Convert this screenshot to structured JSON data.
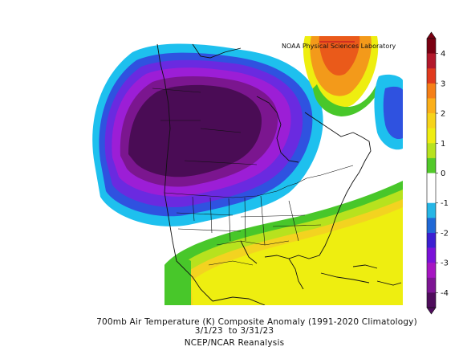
{
  "map": {
    "credit": "NOAA Physical Sciences Laboratory",
    "caption_line1": "700mb Air Temperature (K) Composite Anomaly (1991-2020 Climatology)",
    "caption_line2": "3/1/23  to 3/31/23",
    "caption_line3": "NCEP/NCAR Reanalysis"
  },
  "colorbar": {
    "ticks": [
      "4",
      "3",
      "2",
      "1",
      "0",
      "-1",
      "-2",
      "-3",
      "-4"
    ],
    "colors": [
      "#7a0012",
      "#b2182b",
      "#e03a1e",
      "#f57f17",
      "#fbaf1a",
      "#f6d31a",
      "#efed12",
      "#b7e21e",
      "#52c92a",
      "#ffffff",
      "#ffffff",
      "#26b6e6",
      "#2068d6",
      "#3b1fd2",
      "#7a12d8",
      "#a616c2",
      "#7d1593",
      "#4f0d5c"
    ]
  },
  "colors": {
    "deep_purple": "#4a0c55",
    "purple": "#7b168f",
    "violet": "#9c1ed6",
    "blue_violet": "#6a2ae0",
    "blue": "#2f52e0",
    "cyan": "#1ec0ee",
    "yellow": "#eeee10",
    "yellow_orange": "#f3d320",
    "light_green": "#b7e21e",
    "green": "#48c72a",
    "orange": "#f39a1a",
    "red_orange": "#ea5a1a"
  }
}
